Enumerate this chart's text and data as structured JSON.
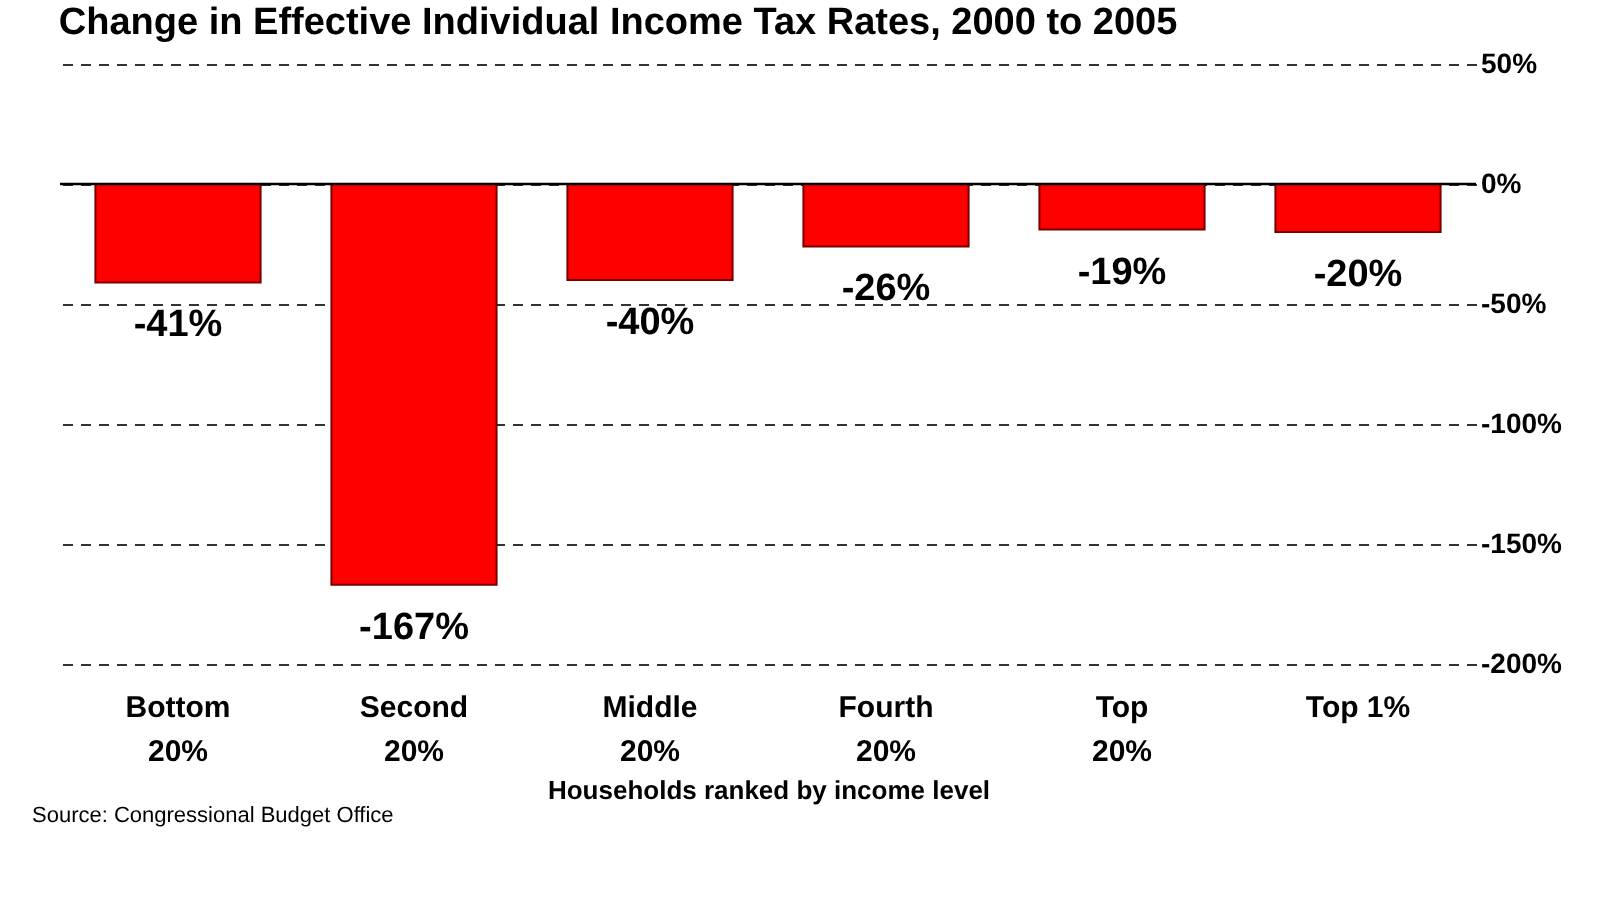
{
  "chart_data": {
    "type": "bar",
    "title": "Change in Effective Individual Income Tax Rates, 2000 to 2005",
    "categories": [
      "Bottom\n20%",
      "Second\n20%",
      "Middle\n20%",
      "Fourth\n20%",
      "Top\n20%",
      "Top 1%"
    ],
    "values": [
      -41,
      -167,
      -40,
      -26,
      -19,
      -20
    ],
    "color": "#ff0000",
    "value_labels": [
      "-41%",
      "-167%",
      "-40%",
      "-26%",
      "-19%",
      "-20%"
    ],
    "xlabel": "Households ranked by income level",
    "ylim": [
      -200,
      50
    ],
    "yticks": [
      {
        "value": 50,
        "label": "50%"
      },
      {
        "value": 0,
        "label": "0%"
      },
      {
        "value": -50,
        "label": "-50%"
      },
      {
        "value": -100,
        "label": "-100%"
      },
      {
        "value": -150,
        "label": "-150%"
      },
      {
        "value": -200,
        "label": "-200%"
      }
    ],
    "grid": "y",
    "ref_lines": [
      {
        "axis": "y",
        "value": 0,
        "color": "#000000"
      }
    ],
    "annotations": [
      "Source: Congressional Budget Office"
    ]
  }
}
